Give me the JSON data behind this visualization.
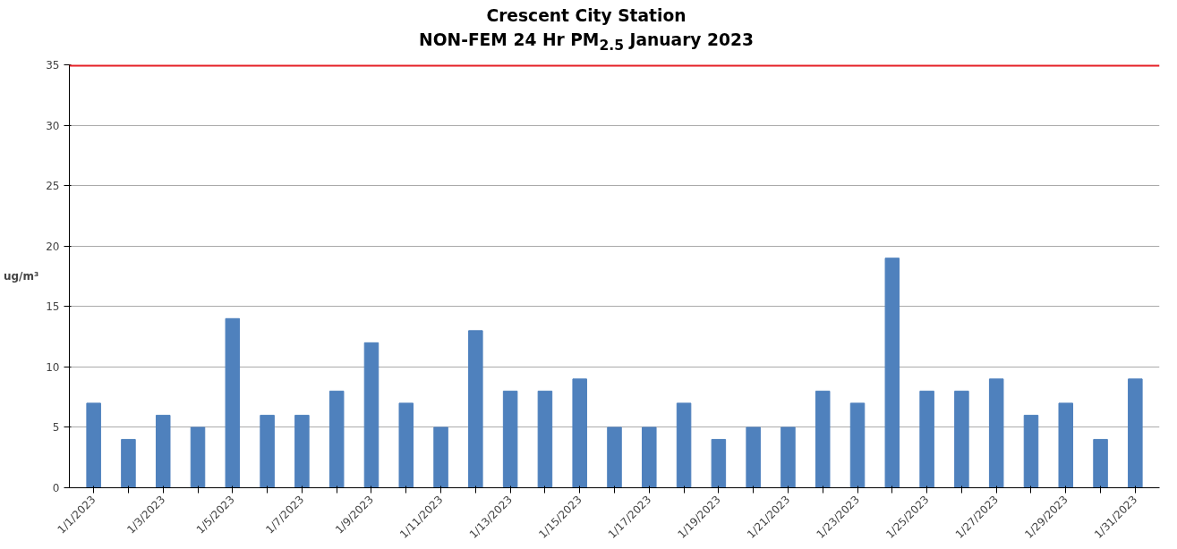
{
  "chart_data": {
    "type": "bar",
    "title": "Crescent City Station\nNON-FEM 24 Hr PM$_{2.5}$ January 2023",
    "ylabel": "ug/m³",
    "categories": [
      "1/1/2023",
      null,
      "1/3/2023",
      null,
      "1/5/2023",
      null,
      "1/7/2023",
      null,
      "1/9/2023",
      null,
      "1/11/2023",
      null,
      "1/13/2023",
      null,
      "1/15/2023",
      null,
      "1/17/2023",
      null,
      "1/19/2023",
      null,
      "1/21/2023",
      null,
      "1/23/2023",
      null,
      "1/25/2023",
      null,
      "1/27/2023",
      null,
      "1/29/2023",
      null,
      "1/31/2023"
    ],
    "values": [
      7,
      4,
      6,
      5,
      14,
      6,
      6,
      8,
      12,
      7,
      5,
      13,
      8,
      8,
      9,
      5,
      5,
      7,
      4,
      5,
      5,
      8,
      7,
      19,
      8,
      8,
      9,
      6,
      7,
      4,
      9
    ],
    "color": "#4f81bd",
    "ylim": [
      0,
      35
    ],
    "yticks": [
      0,
      5,
      10,
      15,
      20,
      25,
      30,
      35
    ],
    "grid": "y",
    "ref_lines": [
      {
        "axis": "y",
        "value": 35,
        "label": null,
        "color": "#e51e25"
      }
    ]
  }
}
